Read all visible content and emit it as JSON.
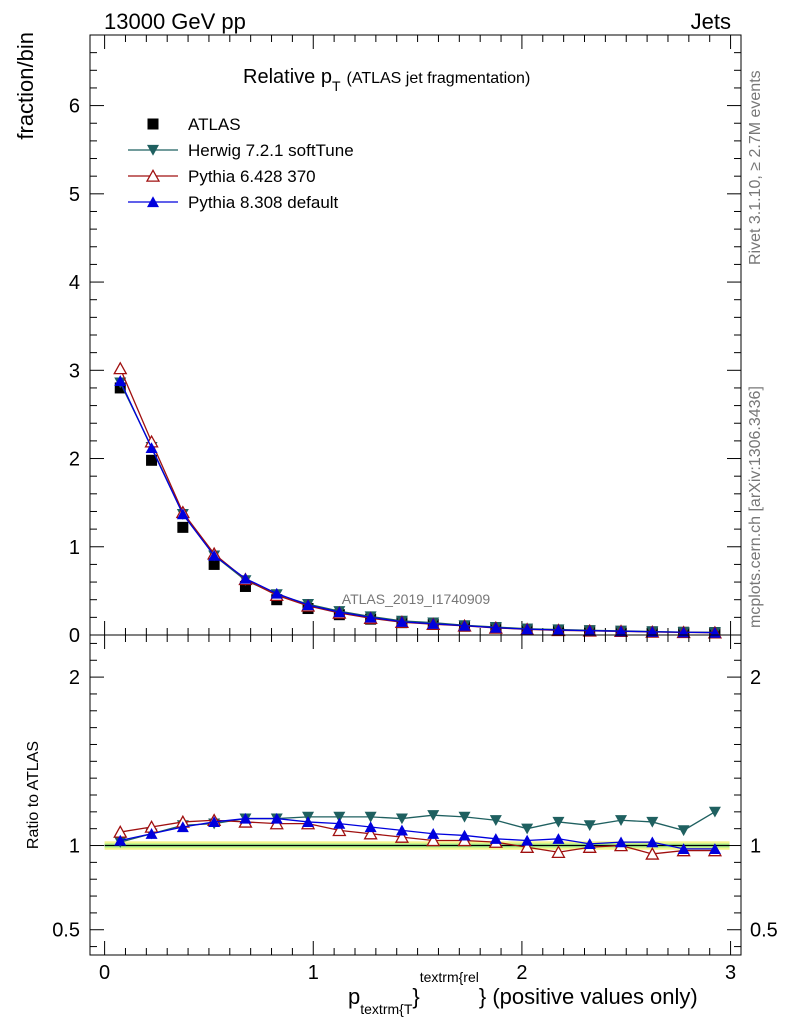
{
  "header": {
    "left": "13000 GeV pp",
    "right": "Jets"
  },
  "side": {
    "rivet": "Rivet 3.1.10, ≥ 2.7M events",
    "mcplots": "mcplots.cern.ch [arXiv:1306.3436]"
  },
  "chart_data": [
    {
      "type": "line",
      "title": "Relative p",
      "title_sub": "T",
      "title_suffix": "(ATLAS jet fragmentation)",
      "watermark": "ATLAS_2019_I1740909",
      "ylabel": "fraction/bin",
      "xlim": [
        -0.07,
        3.05
      ],
      "ylim": [
        0,
        6.8
      ],
      "yticks": [
        0,
        1,
        2,
        3,
        4,
        5,
        6
      ],
      "x": [
        0.075,
        0.225,
        0.375,
        0.525,
        0.675,
        0.825,
        0.975,
        1.125,
        1.275,
        1.425,
        1.575,
        1.725,
        1.875,
        2.025,
        2.175,
        2.325,
        2.475,
        2.625,
        2.775,
        2.925
      ],
      "series": [
        {
          "name": "ATLAS",
          "marker": "square",
          "color": "#000000",
          "values": [
            2.8,
            1.98,
            1.22,
            0.8,
            0.55,
            0.4,
            0.3,
            0.23,
            0.18,
            0.14,
            0.12,
            0.1,
            0.08,
            0.065,
            0.055,
            0.048,
            0.042,
            0.036,
            0.031,
            0.027
          ]
        },
        {
          "name": "Herwig 7.2.1 softTune",
          "marker": "triangle-down",
          "color": "#1f6060",
          "values": [
            2.86,
            2.13,
            1.37,
            0.9,
            0.62,
            0.46,
            0.35,
            0.27,
            0.21,
            0.16,
            0.14,
            0.11,
            0.09,
            0.071,
            0.062,
            0.053,
            0.047,
            0.04,
            0.033,
            0.031
          ]
        },
        {
          "name": "Pythia 6.428 370",
          "marker": "triangle-up-open",
          "color": "#a01010",
          "values": [
            3.02,
            2.19,
            1.39,
            0.92,
            0.63,
            0.45,
            0.33,
            0.25,
            0.19,
            0.145,
            0.122,
            0.103,
            0.08,
            0.064,
            0.053,
            0.047,
            0.042,
            0.034,
            0.03,
            0.026
          ]
        },
        {
          "name": "Pythia 8.308 default",
          "marker": "triangle-up",
          "color": "#0000dd",
          "values": [
            2.88,
            2.12,
            1.37,
            0.9,
            0.64,
            0.47,
            0.34,
            0.26,
            0.2,
            0.15,
            0.127,
            0.106,
            0.083,
            0.067,
            0.057,
            0.049,
            0.043,
            0.037,
            0.031,
            0.027
          ]
        }
      ]
    },
    {
      "type": "line",
      "ylabel": "Ratio to ATLAS",
      "xlabel_main": "p",
      "xlabel_sub": "textrm{T",
      "xlabel_sup1": "}",
      "xlabel_sup2": "textrm{rel",
      "xlabel_tail": "} (positive values only)",
      "xlim": [
        -0.07,
        3.05
      ],
      "ylim": [
        0.35,
        2.25
      ],
      "yticks": [
        0.5,
        1,
        2
      ],
      "ytick_labels": [
        "0.5",
        "1",
        "2"
      ],
      "xticks": [
        0,
        1,
        2,
        3
      ],
      "xtick_labels": [
        "0",
        "1",
        "2",
        "3"
      ],
      "x": [
        0.075,
        0.225,
        0.375,
        0.525,
        0.675,
        0.825,
        0.975,
        1.125,
        1.275,
        1.425,
        1.575,
        1.725,
        1.875,
        2.025,
        2.175,
        2.325,
        2.475,
        2.625,
        2.775,
        2.925
      ],
      "series": [
        {
          "name": "Herwig 7.2.1 softTune",
          "marker": "triangle-down",
          "color": "#1f6060",
          "values": [
            1.02,
            1.07,
            1.12,
            1.13,
            1.16,
            1.16,
            1.17,
            1.17,
            1.17,
            1.16,
            1.18,
            1.17,
            1.15,
            1.1,
            1.14,
            1.12,
            1.15,
            1.14,
            1.09,
            1.2
          ]
        },
        {
          "name": "Pythia 6.428 370",
          "marker": "triangle-up-open",
          "color": "#a01010",
          "values": [
            1.08,
            1.11,
            1.14,
            1.15,
            1.14,
            1.13,
            1.13,
            1.09,
            1.07,
            1.05,
            1.03,
            1.03,
            1.02,
            0.99,
            0.96,
            0.99,
            1.0,
            0.95,
            0.97,
            0.97
          ]
        },
        {
          "name": "Pythia 8.308 default",
          "marker": "triangle-up",
          "color": "#0000dd",
          "values": [
            1.03,
            1.07,
            1.11,
            1.14,
            1.16,
            1.16,
            1.14,
            1.13,
            1.11,
            1.09,
            1.07,
            1.06,
            1.04,
            1.03,
            1.04,
            1.01,
            1.02,
            1.02,
            0.98,
            0.98
          ]
        }
      ]
    }
  ]
}
